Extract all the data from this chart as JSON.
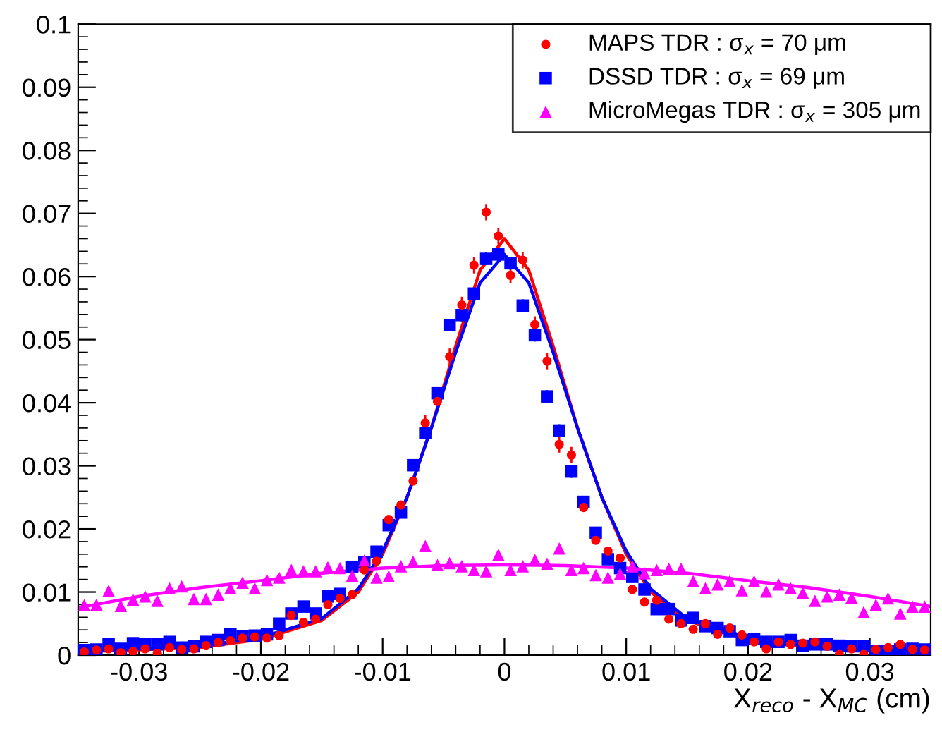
{
  "chart_data": {
    "type": "scatter",
    "xlabel": "X$_{reco}$ - X$_{MC}$ (cm)",
    "x": [
      -0.0345,
      -0.0335,
      -0.0325,
      -0.0315,
      -0.0305,
      -0.0295,
      -0.0285,
      -0.0275,
      -0.0265,
      -0.0255,
      -0.0245,
      -0.0235,
      -0.0225,
      -0.0215,
      -0.0205,
      -0.0195,
      -0.0185,
      -0.0175,
      -0.0165,
      -0.0155,
      -0.0145,
      -0.0135,
      -0.0125,
      -0.0115,
      -0.0105,
      -0.0095,
      -0.0085,
      -0.0075,
      -0.0065,
      -0.0055,
      -0.0045,
      -0.0035,
      -0.0025,
      -0.0015,
      -0.0005,
      0.0005,
      0.0015,
      0.0025,
      0.0035,
      0.0045,
      0.0055,
      0.0065,
      0.0075,
      0.0085,
      0.0095,
      0.0105,
      0.0115,
      0.0125,
      0.0135,
      0.0145,
      0.0155,
      0.0165,
      0.0175,
      0.0185,
      0.0195,
      0.0205,
      0.0215,
      0.0225,
      0.0235,
      0.0245,
      0.0255,
      0.0265,
      0.0275,
      0.0285,
      0.0295,
      0.0305,
      0.0315,
      0.0325,
      0.0335,
      0.0345
    ],
    "xlim": [
      -0.035,
      0.035
    ],
    "ylim": [
      0,
      0.1
    ],
    "xticks": [
      -0.03,
      -0.02,
      -0.01,
      0,
      0.01,
      0.02,
      0.03
    ],
    "yticks": [
      0,
      0.01,
      0.02,
      0.03,
      0.04,
      0.05,
      0.06,
      0.07,
      0.08,
      0.09,
      0.1
    ],
    "grid": false,
    "legend": "top right",
    "series": [
      {
        "name": "MAPS TDR : σ$_{x}$ = 70 μm",
        "marker": "circle",
        "color": "#ff0000",
        "values": [
          0.0005,
          0.0008,
          0.001,
          0.0004,
          0.0006,
          0.001,
          0.0003,
          0.0012,
          0.0009,
          0.001,
          0.0015,
          0.002,
          0.0023,
          0.0027,
          0.0029,
          0.0027,
          0.0031,
          0.0063,
          0.0052,
          0.0057,
          0.008,
          0.009,
          0.0096,
          0.0135,
          0.0149,
          0.0215,
          0.0238,
          0.0276,
          0.0368,
          0.0402,
          0.0473,
          0.0555,
          0.0618,
          0.0702,
          0.0664,
          0.0602,
          0.0626,
          0.0524,
          0.0466,
          0.0334,
          0.0317,
          0.0234,
          0.0182,
          0.0165,
          0.0154,
          0.0104,
          0.0084,
          0.0087,
          0.0057,
          0.005,
          0.0041,
          0.005,
          0.0033,
          0.0043,
          0.0032,
          0.0021,
          0.001,
          0.0021,
          0.0017,
          0.0019,
          0.0021,
          0.0014,
          0.0001,
          0.001,
          0.0001,
          0.0009,
          0.0012,
          0.0017,
          0.0009,
          0.0008
        ],
        "errors": [
          null,
          null,
          null,
          null,
          null,
          null,
          null,
          null,
          null,
          null,
          null,
          null,
          null,
          null,
          null,
          null,
          null,
          null,
          null,
          null,
          null,
          null,
          null,
          null,
          null,
          null,
          null,
          null,
          0.0013,
          0.0013,
          0.0013,
          0.0013,
          0.0013,
          0.0013,
          0.0013,
          0.0013,
          0.0013,
          0.0013,
          0.0013,
          0.0013,
          0.0013,
          null,
          null,
          null,
          null,
          null,
          null,
          null,
          null,
          null,
          null,
          null,
          null,
          null,
          null,
          null,
          null,
          null,
          null,
          null,
          null,
          null,
          null,
          null,
          null,
          null,
          null,
          null,
          null,
          null
        ]
      },
      {
        "name": "DSSD TDR : σ$_{x}$ = 69 μm",
        "marker": "square",
        "color": "#0000ff",
        "values": [
          0.0008,
          0.0009,
          0.0017,
          0.001,
          0.0019,
          0.0017,
          0.0017,
          0.0021,
          0.0012,
          0.0014,
          0.0021,
          0.0024,
          0.0033,
          0.003,
          0.0031,
          0.0033,
          0.005,
          0.0066,
          0.0077,
          0.0066,
          0.0093,
          0.0097,
          0.014,
          0.0147,
          0.0164,
          0.0206,
          0.0226,
          0.0301,
          0.0352,
          0.0415,
          0.0523,
          0.0539,
          0.0573,
          0.0628,
          0.0635,
          0.0621,
          0.0554,
          0.0507,
          0.041,
          0.0356,
          0.0291,
          0.0243,
          0.0194,
          0.0152,
          0.0138,
          0.0124,
          0.0104,
          0.0073,
          0.0073,
          0.0055,
          0.0059,
          0.0046,
          0.0043,
          0.0038,
          0.0024,
          0.0026,
          0.0021,
          0.0021,
          0.0024,
          0.0015,
          0.0017,
          0.0017,
          0.0015,
          0.0014,
          0.0014,
          0.0007,
          0.0007,
          0.0009,
          0.001,
          0.0009
        ],
        "errors": [
          null,
          null,
          null,
          null,
          null,
          null,
          null,
          null,
          null,
          null,
          null,
          null,
          null,
          null,
          null,
          null,
          null,
          null,
          null,
          null,
          null,
          null,
          null,
          null,
          null,
          null,
          null,
          null,
          null,
          null,
          0.001,
          0.001,
          0.001,
          0.001,
          0.001,
          0.001,
          0.001,
          0.001,
          0.001,
          0.001,
          0.001,
          null,
          null,
          null,
          null,
          null,
          null,
          null,
          null,
          null,
          null,
          null,
          null,
          null,
          null,
          null,
          null,
          null,
          null,
          null,
          null,
          null,
          null,
          null,
          null,
          null,
          null,
          null,
          null,
          null
        ]
      },
      {
        "name": "MicroMegas TDR : σ$_{x}$ = 305 μm",
        "marker": "triangle",
        "color": "#ff00ff",
        "values": [
          0.0079,
          0.008,
          0.0102,
          0.0078,
          0.0088,
          0.0093,
          0.0086,
          0.0106,
          0.0109,
          0.0089,
          0.0089,
          0.0096,
          0.0106,
          0.0115,
          0.0106,
          0.0119,
          0.0123,
          0.0135,
          0.0133,
          0.0133,
          0.0139,
          0.0138,
          0.0126,
          0.015,
          0.0123,
          0.0125,
          0.0141,
          0.0148,
          0.0173,
          0.0143,
          0.0146,
          0.0141,
          0.0135,
          0.0133,
          0.0159,
          0.0135,
          0.0141,
          0.0151,
          0.0145,
          0.0169,
          0.0135,
          0.0138,
          0.0127,
          0.0123,
          0.0129,
          0.0141,
          0.013,
          0.0135,
          0.0137,
          0.0137,
          0.0117,
          0.0106,
          0.0112,
          0.0117,
          0.0103,
          0.0117,
          0.0101,
          0.0112,
          0.0106,
          0.0099,
          0.0086,
          0.0093,
          0.0096,
          0.0091,
          0.0068,
          0.008,
          0.009,
          0.0066,
          0.0077,
          0.0077
        ]
      },
      {
        "type": "line",
        "color": "#ff0000",
        "x": [
          -0.035,
          -0.025,
          -0.02,
          -0.015,
          -0.012,
          -0.01,
          -0.008,
          -0.006,
          -0.004,
          -0.002,
          0,
          0.002,
          0.004,
          0.006,
          0.008,
          0.01,
          0.012,
          0.015,
          0.02,
          0.025,
          0.035
        ],
        "values": [
          0.0005,
          0.0012,
          0.0025,
          0.0055,
          0.01,
          0.016,
          0.025,
          0.036,
          0.049,
          0.061,
          0.066,
          0.061,
          0.049,
          0.036,
          0.025,
          0.016,
          0.01,
          0.0055,
          0.0025,
          0.0012,
          0.0005
        ]
      },
      {
        "type": "line",
        "color": "#0000ff",
        "x": [
          -0.035,
          -0.025,
          -0.02,
          -0.015,
          -0.012,
          -0.01,
          -0.008,
          -0.006,
          -0.004,
          -0.002,
          0,
          0.002,
          0.004,
          0.006,
          0.008,
          0.01,
          0.012,
          0.015,
          0.02,
          0.025,
          0.035
        ],
        "values": [
          0.0006,
          0.0014,
          0.0028,
          0.0058,
          0.0105,
          0.0165,
          0.025,
          0.036,
          0.048,
          0.059,
          0.0635,
          0.059,
          0.048,
          0.036,
          0.025,
          0.0165,
          0.0105,
          0.0058,
          0.0028,
          0.0014,
          0.0006
        ]
      },
      {
        "type": "line",
        "color": "#ff00ff",
        "x": [
          -0.035,
          -0.03,
          -0.025,
          -0.02,
          -0.015,
          -0.01,
          -0.005,
          0,
          0.005,
          0.01,
          0.015,
          0.02,
          0.025,
          0.03,
          0.035
        ],
        "values": [
          0.0075,
          0.0093,
          0.0107,
          0.0118,
          0.013,
          0.0138,
          0.0142,
          0.0143,
          0.0142,
          0.0138,
          0.013,
          0.0118,
          0.0107,
          0.0093,
          0.0077
        ]
      }
    ]
  }
}
